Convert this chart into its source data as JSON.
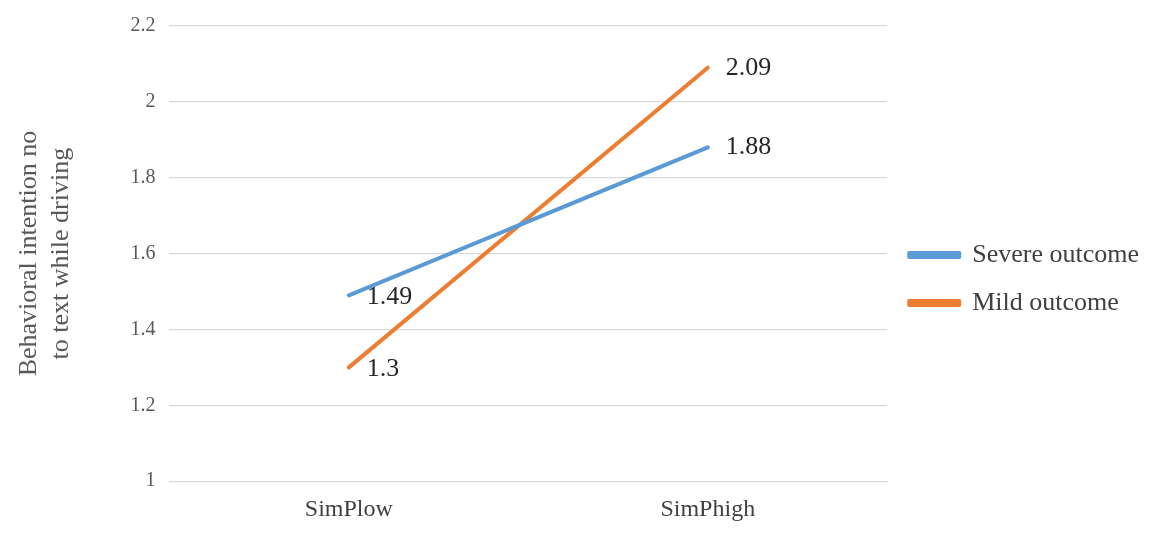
{
  "chart_data": {
    "type": "line",
    "ylabel": "Behavioral intention no to text while driving",
    "categories": [
      "SimPlow",
      "SimPhigh"
    ],
    "series": [
      {
        "name": "Severe outcome",
        "color": "#5b9bd5",
        "values": [
          1.49,
          1.88
        ]
      },
      {
        "name": "Mild outcome",
        "color": "#ed7d31",
        "values": [
          1.3,
          2.09
        ]
      }
    ],
    "ylim": [
      1,
      2.2
    ],
    "yticks": [
      1,
      1.2,
      1.4,
      1.6,
      1.8,
      2,
      2.2
    ],
    "grid": "y",
    "legend": "right",
    "marker": "none",
    "line_style": "solid",
    "data_labels": true
  }
}
